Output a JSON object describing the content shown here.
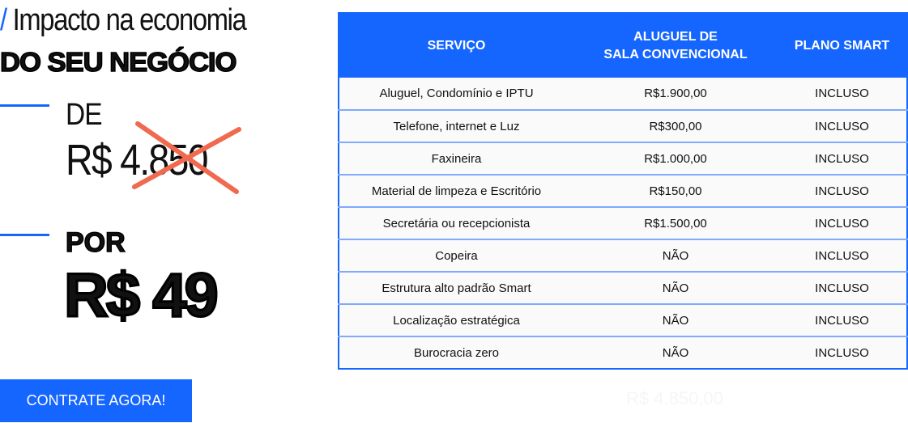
{
  "headline": {
    "slash": "/",
    "line1": "Impacto na economia",
    "line2": "DO SEU NEGÓCIO"
  },
  "price": {
    "from_label": "DE",
    "old_price": "R$ 4.850",
    "to_label": "POR",
    "new_price": "R$ 49"
  },
  "cta": {
    "label": "CONTRATE AGORA!"
  },
  "total_ghost": "R$ 4.850,00",
  "colors": {
    "accent": "#1565ff",
    "strike": "#f06a4f"
  },
  "table": {
    "headers": [
      "SERVIÇO",
      "ALUGUEL DE\nSALA CONVENCIONAL",
      "PLANO SMART"
    ],
    "header_line1": "ALUGUEL DE",
    "header_line2": "SALA CONVENCIONAL",
    "rows": [
      [
        "Aluguel, Condomínio e IPTU",
        "R$1.900,00",
        "INCLUSO"
      ],
      [
        "Telefone, internet e Luz",
        "R$300,00",
        "INCLUSO"
      ],
      [
        "Faxineira",
        "R$1.000,00",
        "INCLUSO"
      ],
      [
        "Material de limpeza e Escritório",
        "R$150,00",
        "INCLUSO"
      ],
      [
        "Secretária ou recepcionista",
        "R$1.500,00",
        "INCLUSO"
      ],
      [
        "Copeira",
        "NÃO",
        "INCLUSO"
      ],
      [
        "Estrutura alto padrão Smart",
        "NÃO",
        "INCLUSO"
      ],
      [
        "Localização estratégica",
        "NÃO",
        "INCLUSO"
      ],
      [
        "Burocracia zero",
        "NÃO",
        "INCLUSO"
      ]
    ]
  }
}
